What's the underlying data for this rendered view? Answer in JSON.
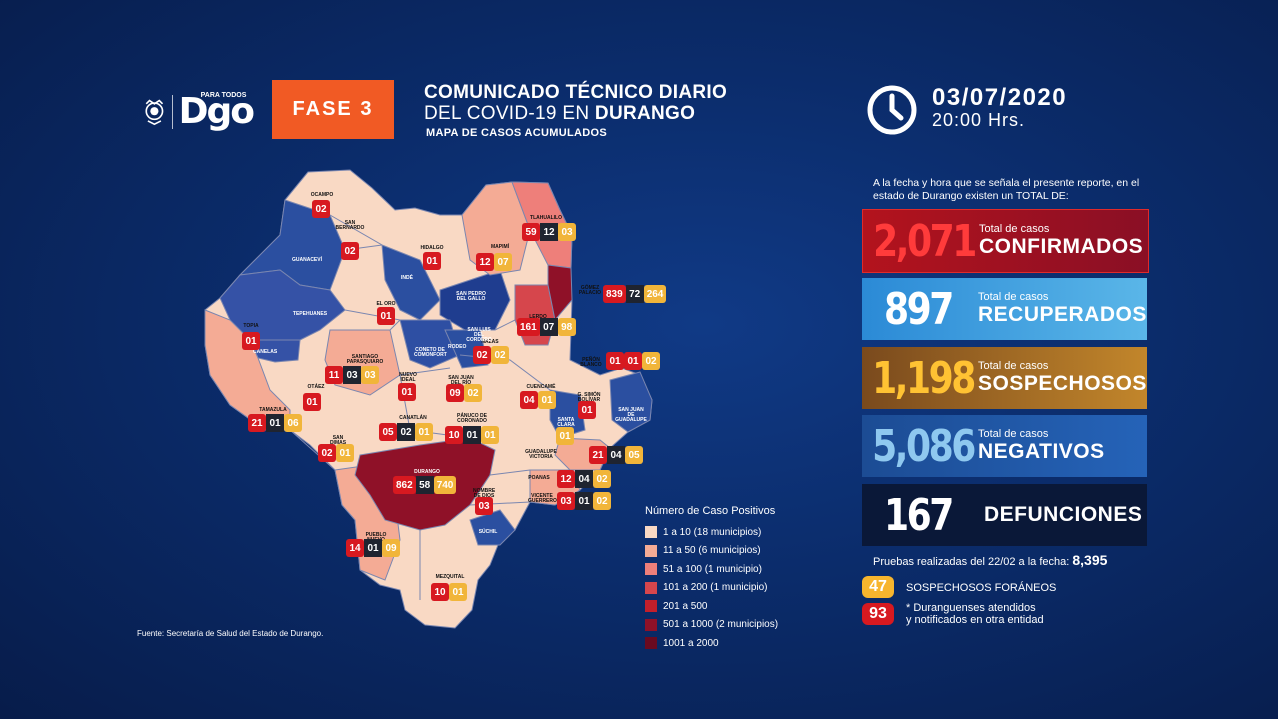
{
  "header": {
    "logo_sub": "PARA TODOS",
    "logo_main": "Dgo",
    "fase": "FASE 3",
    "title_line1": "COMUNICADO TÉCNICO DIARIO",
    "title_line2_prefix": "DEL COVID-19 EN ",
    "title_line2_bold": "DURANGO",
    "title_line3": "MAPA DE CASOS ACUMULADOS",
    "date": "03/07/2020",
    "time": "20:00 Hrs."
  },
  "intro": "A la fecha y hora que se señala el presente reporte, en el estado de Durango existen un TOTAL DE:",
  "stats": {
    "confirmados": {
      "value": "2,071",
      "small": "Total de casos",
      "label": "CONFIRMADOS"
    },
    "recuperados": {
      "value": "897",
      "small": "Total de casos",
      "label": "RECUPERADOS"
    },
    "sospechosos": {
      "value": "1,198",
      "small": "Total de casos",
      "label": "SOSPECHOSOS"
    },
    "negativos": {
      "value": "5,086",
      "small": "Total de casos",
      "label": "NEGATIVOS"
    },
    "defunciones": {
      "value": "167",
      "label": "DEFUNCIONES"
    }
  },
  "pruebas": {
    "text": "Pruebas realizadas del 22/02 a la fecha: ",
    "value": "8,395"
  },
  "foraneos": {
    "value": "47",
    "label": "SOSPECHOSOS FORÁNEOS"
  },
  "otra_entidad": {
    "value": "93",
    "line1": "* Duranguenses atendidos",
    "line2": "y notificados en otra entidad"
  },
  "fuente": "Fuente: Secretaría de Salud del Estado de Durango.",
  "legend": {
    "title": "Número de Caso Positivos",
    "items": [
      {
        "range": "1 a 10",
        "count": "(18 municipios)",
        "color": "#f9d9c4"
      },
      {
        "range": "11 a 50",
        "count": "(6 municipios)",
        "color": "#f4ab95"
      },
      {
        "range": "51 a 100",
        "count": "(1 municipio)",
        "color": "#ee7f7a"
      },
      {
        "range": "101 a 200",
        "count": "(1 municipio)",
        "color": "#d6464c"
      },
      {
        "range": "201 a 500",
        "count": "",
        "color": "#c21f2b"
      },
      {
        "range": "501 a 1000",
        "count": "(2 municipios)",
        "color": "#8f1128"
      },
      {
        "range": "1001 a 2000",
        "count": "",
        "color": "#6a0a20"
      }
    ]
  },
  "map_labels": {
    "ocampo": "OCAMPO",
    "san_bernardo": "SAN BERNARDO",
    "guanacevi": "GUANACEVÍ",
    "hidalgo": "HIDALGO",
    "mapimi": "MAPIMÍ",
    "tlahualilo": "TLAHUALILO",
    "gomez_palacio": "GÓMEZ PALACIO",
    "lerdo": "LERDO",
    "tepehuanes": "TEPEHUANES",
    "el_oro": "EL ORO",
    "indé": "INDÉ",
    "san_pedro": "SAN PEDRO DEL GALLO",
    "topia": "TOPIA",
    "canelas": "CANELAS",
    "santiago": "SANTIAGO PAPASQUIARO",
    "nuevo_ideal": "NUEVO IDEAL",
    "nazas": "NAZAS",
    "san_luis": "SAN LUIS DEL CORDERO",
    "rodeo": "RODEO",
    "penon": "PEÑÓN BLANCO",
    "otaez": "OTÁEZ",
    "coneto": "CONETO DE COMONFORT",
    "san_juan_rio": "SAN JUAN DEL RÍO",
    "cuencame": "CUENCAMÉ",
    "tamazula": "TAMAZULA",
    "canatlan": "CANATLÁN",
    "panuco": "PÁNUCO DE CORONADO",
    "simon_bolivar": "G. SIMÓN BOLÍVAR",
    "san_juan_guadalupe": "SAN JUAN DE GUADALUPE",
    "santa_clara": "SANTA CLARA",
    "san_dimas": "SAN DIMAS",
    "guadalupe_victoria": "GUADALUPE VICTORIA",
    "durango": "DURANGO",
    "poanas": "POANAS",
    "nombre_dios": "NOMBRE DE DIOS",
    "vicente_guerrero": "VICENTE GUERRERO",
    "suchil": "SÚCHIL",
    "pueblo_nuevo": "PUEBLO NUEVO",
    "mezquital": "MEZQUITAL"
  },
  "badges": [
    {
      "id": "ocampo",
      "vals": [
        [
          "r",
          "02"
        ]
      ]
    },
    {
      "id": "san_bernardo",
      "vals": [
        [
          "r",
          "02"
        ]
      ]
    },
    {
      "id": "hidalgo",
      "vals": [
        [
          "r",
          "01"
        ]
      ]
    },
    {
      "id": "mapimi",
      "vals": [
        [
          "r",
          "12"
        ],
        [
          "y",
          "07"
        ]
      ]
    },
    {
      "id": "tlahualilo",
      "vals": [
        [
          "r",
          "59"
        ],
        [
          "d",
          "12"
        ],
        [
          "y",
          "03"
        ]
      ]
    },
    {
      "id": "gomez_palacio",
      "vals": [
        [
          "r",
          "839"
        ],
        [
          "d",
          "72"
        ],
        [
          "y",
          "264"
        ]
      ]
    },
    {
      "id": "lerdo",
      "vals": [
        [
          "r",
          "161"
        ],
        [
          "d",
          "07"
        ],
        [
          "y",
          "98"
        ]
      ]
    },
    {
      "id": "el_oro",
      "vals": [
        [
          "r",
          "01"
        ]
      ]
    },
    {
      "id": "topia",
      "vals": [
        [
          "r",
          "01"
        ]
      ]
    },
    {
      "id": "nazas",
      "vals": [
        [
          "r",
          "02"
        ],
        [
          "y",
          "02"
        ]
      ]
    },
    {
      "id": "penon",
      "vals": [
        [
          "r",
          "01"
        ],
        [
          "r",
          "01"
        ],
        [
          "y",
          "02"
        ]
      ]
    },
    {
      "id": "santiago",
      "vals": [
        [
          "r",
          "11"
        ],
        [
          "d",
          "03"
        ],
        [
          "y",
          "03"
        ]
      ]
    },
    {
      "id": "nuevo_ideal",
      "vals": [
        [
          "r",
          "01"
        ]
      ]
    },
    {
      "id": "san_juan_rio",
      "vals": [
        [
          "r",
          "09"
        ],
        [
          "y",
          "02"
        ]
      ]
    },
    {
      "id": "otaez",
      "vals": [
        [
          "r",
          "01"
        ]
      ]
    },
    {
      "id": "cuencame",
      "vals": [
        [
          "r",
          "04"
        ],
        [
          "y",
          "01"
        ]
      ]
    },
    {
      "id": "simon_bolivar",
      "vals": [
        [
          "r",
          "01"
        ]
      ]
    },
    {
      "id": "tamazula",
      "vals": [
        [
          "r",
          "21"
        ],
        [
          "d",
          "01"
        ],
        [
          "y",
          "06"
        ]
      ]
    },
    {
      "id": "canatlan",
      "vals": [
        [
          "r",
          "05"
        ],
        [
          "d",
          "02"
        ],
        [
          "y",
          "01"
        ]
      ]
    },
    {
      "id": "panuco",
      "vals": [
        [
          "r",
          "10"
        ],
        [
          "d",
          "01"
        ],
        [
          "y",
          "01"
        ]
      ]
    },
    {
      "id": "santa_clara",
      "vals": [
        [
          "y",
          "01"
        ]
      ]
    },
    {
      "id": "san_dimas",
      "vals": [
        [
          "r",
          "02"
        ],
        [
          "y",
          "01"
        ]
      ]
    },
    {
      "id": "guadalupe_victoria",
      "vals": [
        [
          "r",
          "21"
        ],
        [
          "d",
          "04"
        ],
        [
          "y",
          "05"
        ]
      ]
    },
    {
      "id": "durango",
      "vals": [
        [
          "r",
          "862"
        ],
        [
          "d",
          "58"
        ],
        [
          "y",
          "740"
        ]
      ]
    },
    {
      "id": "poanas",
      "vals": [
        [
          "r",
          "12"
        ],
        [
          "d",
          "04"
        ],
        [
          "y",
          "02"
        ]
      ]
    },
    {
      "id": "nombre_dios",
      "vals": [
        [
          "r",
          "03"
        ]
      ]
    },
    {
      "id": "vicente_guerrero",
      "vals": [
        [
          "r",
          "03"
        ],
        [
          "d",
          "01"
        ],
        [
          "y",
          "02"
        ]
      ]
    },
    {
      "id": "pueblo_nuevo",
      "vals": [
        [
          "r",
          "14"
        ],
        [
          "d",
          "01"
        ],
        [
          "y",
          "09"
        ]
      ]
    },
    {
      "id": "mezquital",
      "vals": [
        [
          "r",
          "10"
        ],
        [
          "y",
          "01"
        ]
      ]
    }
  ]
}
